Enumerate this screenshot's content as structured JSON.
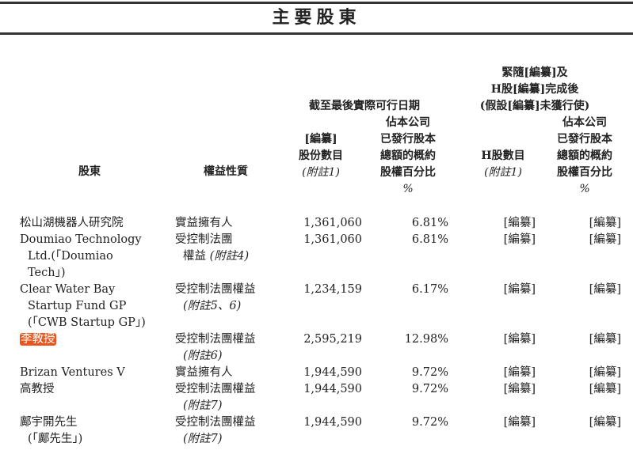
{
  "title": "主要股東",
  "header": {
    "col_shareholder": "股東",
    "col_nature": "權益性質",
    "group1_title": "截至最後實際可行日期",
    "group1_shares": [
      "[編纂]",
      "股份數目"
    ],
    "group1_shares_note": "(附註1)",
    "group1_pct": [
      "佔本公司",
      "已發行股本",
      "總額的概約",
      "股權百分比"
    ],
    "group1_pct_unit": "%",
    "group2_title": [
      "緊隨[編纂]及",
      "H股[編纂]完成後",
      "(假設[編纂]未獲行使)"
    ],
    "group2_shares": "H股數目",
    "group2_shares_note": "(附註1)",
    "group2_pct": [
      "佔本公司",
      "已發行股本",
      "總額的概約",
      "股權百分比"
    ],
    "group2_pct_unit": "%"
  },
  "highlight_color": "#e8561f",
  "rows": [
    {
      "name": [
        "松山湖機器人研究院"
      ],
      "nature": [
        "實益擁有人"
      ],
      "nature_note": "",
      "shares": "1,361,060",
      "pct": "6.81%",
      "h_shares": "[編纂]",
      "h_pct": "[編纂]"
    },
    {
      "name": [
        "Doumiao Technology",
        "Ltd.(「Doumiao",
        "Tech」)"
      ],
      "nature": [
        "受控制法團",
        "權益"
      ],
      "nature_note": "(附註4)",
      "shares": "1,361,060",
      "pct": "6.81%",
      "h_shares": "[編纂]",
      "h_pct": "[編纂]"
    },
    {
      "name": [
        "Clear Water Bay",
        "Startup Fund GP",
        "(「CWB Startup GP」)"
      ],
      "nature": [
        "受控制法團權益"
      ],
      "nature_note": "(附註5、6)",
      "shares": "1,234,159",
      "pct": "6.17%",
      "h_shares": "[編纂]",
      "h_pct": "[編纂]"
    },
    {
      "name": [
        "李教授"
      ],
      "highlighted": true,
      "nature": [
        "受控制法團權益"
      ],
      "nature_note": "(附註6)",
      "shares": "2,595,219",
      "pct": "12.98%",
      "h_shares": "[編纂]",
      "h_pct": "[編纂]"
    },
    {
      "name": [
        "Brizan Ventures V"
      ],
      "nature": [
        "實益擁有人"
      ],
      "nature_note": "",
      "shares": "1,944,590",
      "pct": "9.72%",
      "h_shares": "[編纂]",
      "h_pct": "[編纂]"
    },
    {
      "name": [
        "高教授"
      ],
      "nature": [
        "受控制法團權益"
      ],
      "nature_note": "(附註7)",
      "shares": "1,944,590",
      "pct": "9.72%",
      "h_shares": "[編纂]",
      "h_pct": "[編纂]"
    },
    {
      "name": [
        "鄺宇開先生",
        "(「鄺先生」)"
      ],
      "nature": [
        "受控制法團權益"
      ],
      "nature_note": "(附註7)",
      "shares": "1,944,590",
      "pct": "9.72%",
      "h_shares": "[編纂]",
      "h_pct": "[編纂]"
    }
  ]
}
